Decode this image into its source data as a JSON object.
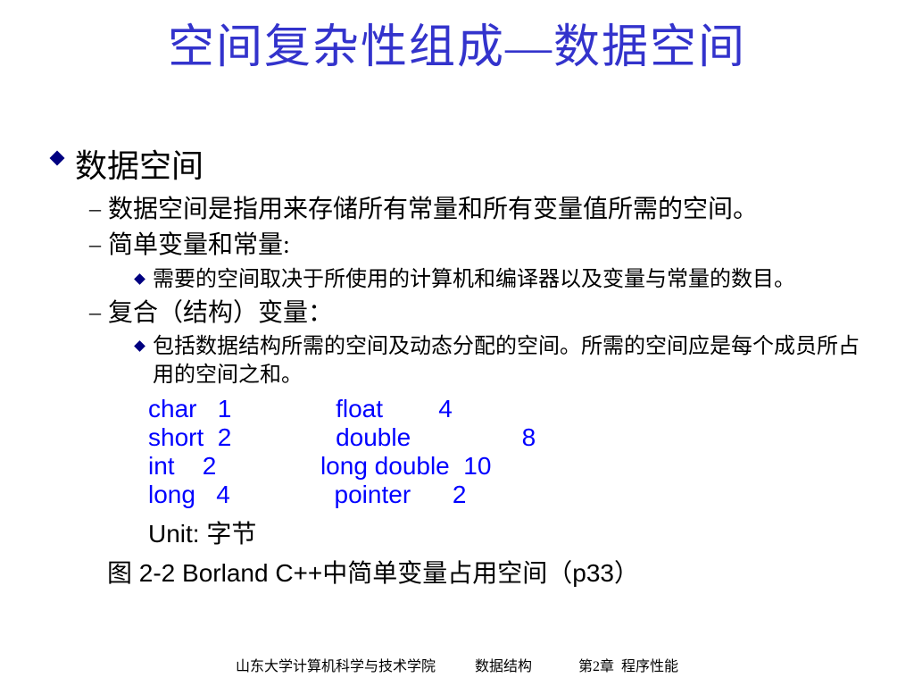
{
  "colors": {
    "title": "#3333cc",
    "body_text": "#000000",
    "accent_blue": "#0000ff",
    "bullet_fill": "#000080",
    "background": "#ffffff"
  },
  "title": "空间复杂性组成—数据空间",
  "lvl1": {
    "text": "数据空间"
  },
  "lvl2_1": {
    "bullet": "–",
    "text": "数据空间是指用来存储所有常量和所有变量值所需的空间。"
  },
  "lvl2_2": {
    "bullet": "–",
    "text": "简单变量和常量:"
  },
  "lvl3_1": {
    "text": "需要的空间取决于所使用的计算机和编译器以及变量与常量的数目。"
  },
  "lvl2_3": {
    "bullet": "–",
    "text": "复合（结构）变量："
  },
  "lvl3_2": {
    "text": "包括数据结构所需的空间及动态分配的空间。所需的空间应是每个成员所占用的空间之和。"
  },
  "types": {
    "col1": [
      {
        "name": "char",
        "size": "1"
      },
      {
        "name": "short",
        "size": "2"
      },
      {
        "name": "int",
        "size": "2"
      },
      {
        "name": "long",
        "size": "4"
      }
    ],
    "col2": [
      {
        "name": "float",
        "size": "4"
      },
      {
        "name": "double",
        "size": "         8"
      },
      {
        "name": "long double",
        "size": "10"
      },
      {
        "name": "pointer",
        "size": "2"
      }
    ],
    "col1_name_width": 7,
    "col2_name_width": 13,
    "gap_between_cols": 15
  },
  "unit_label": "Unit: 字节",
  "caption": "图 2-2 Borland C++中简单变量占用空间（p33）",
  "footer": "山东大学计算机科学与技术学院           数据结构             第2章  程序性能"
}
